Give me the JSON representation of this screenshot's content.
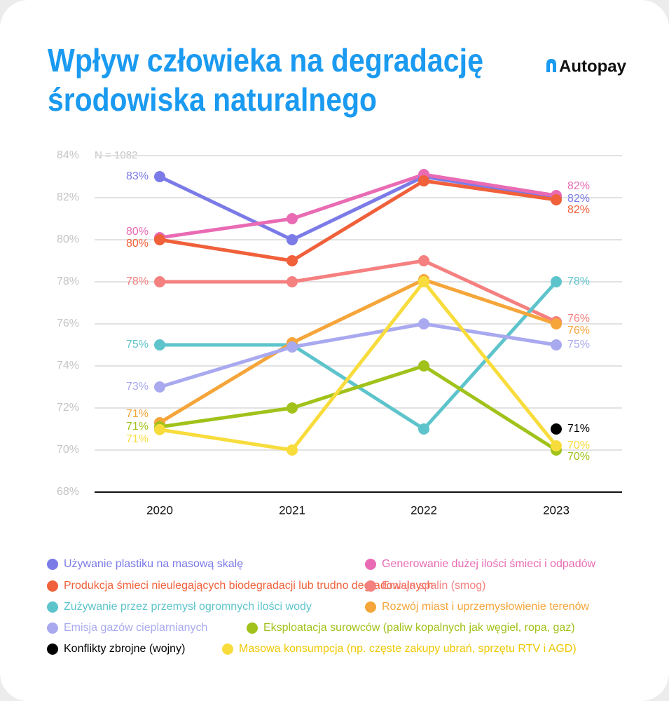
{
  "chart_data": {
    "type": "line",
    "title_lines": [
      "Wpływ człowieka na degradację",
      "środowiska naturalnego"
    ],
    "brand": "Autopay",
    "annotation": "N = 1082",
    "categories": [
      "2020",
      "2021",
      "2022",
      "2023"
    ],
    "ylim": [
      68,
      84
    ],
    "yticks": [
      {
        "value": 68,
        "label": "68%"
      },
      {
        "value": 70,
        "label": "70%"
      },
      {
        "value": 72,
        "label": "72%"
      },
      {
        "value": 74,
        "label": "74%"
      },
      {
        "value": 76,
        "label": "76%"
      },
      {
        "value": 78,
        "label": "78%"
      },
      {
        "value": 80,
        "label": "80%"
      },
      {
        "value": 82,
        "label": "82%"
      },
      {
        "value": 84,
        "label": "84%"
      }
    ],
    "grid": true,
    "series": [
      {
        "name": "Używanie plastiku na masową skalę",
        "color": "#7b7be8",
        "values": [
          83,
          80,
          83,
          82
        ],
        "value_labels": [
          "83%",
          null,
          null,
          "82%"
        ]
      },
      {
        "name": "Generowanie dużej ilości śmieci i odpadów",
        "color": "#e96bb4",
        "values": [
          80.1,
          81,
          83.1,
          82.1
        ],
        "value_labels": [
          "80%",
          null,
          null,
          "82%"
        ]
      },
      {
        "name": "Produkcja śmieci nieulegających biodegradacji lub trudno degradowalnych",
        "color": "#f0603a",
        "values": [
          80,
          79,
          82.8,
          81.9
        ],
        "value_labels": [
          "80%",
          null,
          null,
          "82%"
        ]
      },
      {
        "name": "Emisja spalin (smog)",
        "color": "#f58080",
        "values": [
          78,
          78,
          79,
          76.1
        ],
        "value_labels": [
          "78%",
          null,
          null,
          "76%"
        ]
      },
      {
        "name": "Zużywanie przez przemysł ogromnych ilości wody",
        "color": "#5ec4cc",
        "values": [
          75,
          75,
          71,
          78
        ],
        "value_labels": [
          "75%",
          null,
          null,
          "78%"
        ]
      },
      {
        "name": "Rozwój miast i uprzemysłowienie terenów",
        "color": "#f5a53a",
        "values": [
          71.3,
          75.1,
          78.1,
          76
        ],
        "value_labels": [
          "71%",
          null,
          null,
          "76%"
        ]
      },
      {
        "name": "Emisja gazów cieplarnianych",
        "color": "#a9a9f0",
        "values": [
          73,
          74.9,
          76,
          75
        ],
        "value_labels": [
          "73%",
          null,
          null,
          "75%"
        ]
      },
      {
        "name": "Eksploatacja surowców (paliw kopalnych jak węgiel, ropa, gaz)",
        "color": "#a0c21a",
        "values": [
          71.1,
          72,
          74,
          70
        ],
        "value_labels": [
          "71%",
          null,
          null,
          "70%"
        ]
      },
      {
        "name": "Konflikty zbrojne (wojny)",
        "color": "#000000",
        "values": [
          null,
          null,
          null,
          71
        ],
        "value_labels": [
          null,
          null,
          null,
          "71%"
        ]
      },
      {
        "name": "Masowa konsumpcja (np. częste zakupy ubrań, sprzętu RTV i AGD)",
        "color": "#f8dc3c",
        "values": [
          70.97,
          70,
          78,
          70.2
        ],
        "value_labels": [
          "71%",
          null,
          null,
          "70%"
        ]
      }
    ]
  }
}
